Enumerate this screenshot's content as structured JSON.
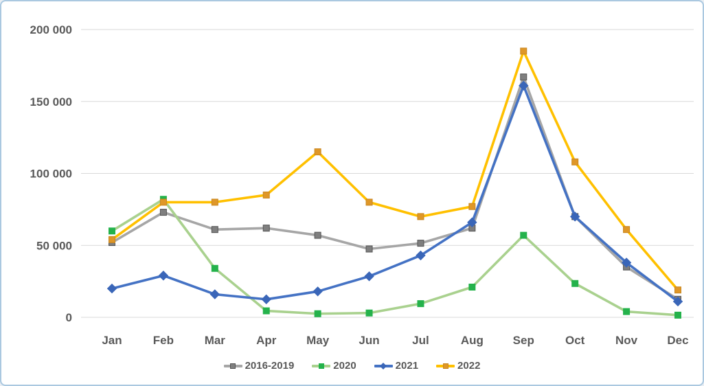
{
  "card": {
    "background": "#ffffff",
    "border_color": "#aac8e0"
  },
  "chart_data": {
    "type": "line",
    "title": "",
    "xlabel": "",
    "ylabel": "",
    "categories": [
      "Jan",
      "Feb",
      "Mar",
      "Apr",
      "May",
      "Jun",
      "Jul",
      "Aug",
      "Sep",
      "Oct",
      "Nov",
      "Dec"
    ],
    "series": [
      {
        "name": "2016-2019",
        "line_color": "#a6a6a6",
        "marker_color": "#7f7f7f",
        "marker_border": "#545454",
        "marker": "square",
        "values": [
          52000,
          73000,
          61000,
          62000,
          57000,
          47500,
          51500,
          62000,
          167000,
          70000,
          35000,
          12500
        ]
      },
      {
        "name": "2020",
        "line_color": "#a9d18e",
        "marker_color": "#24b24b",
        "marker_border": "#24b24b",
        "marker": "square",
        "values": [
          60000,
          82000,
          34000,
          4500,
          2500,
          3000,
          9500,
          21000,
          57000,
          23500,
          4000,
          1500
        ]
      },
      {
        "name": "2021",
        "line_color": "#4472c4",
        "marker_color": "#3a66b8",
        "marker_border": "#3a66b8",
        "marker": "diamond",
        "values": [
          20000,
          29000,
          16000,
          12500,
          18000,
          28500,
          43000,
          66000,
          161000,
          70000,
          38000,
          11000
        ]
      },
      {
        "name": "2022",
        "line_color": "#ffc000",
        "marker_color": "#df9728",
        "marker_border": "#c8861f",
        "marker": "square",
        "values": [
          54000,
          80000,
          80000,
          85000,
          115000,
          80000,
          70000,
          77000,
          185000,
          108000,
          61000,
          19000
        ]
      }
    ],
    "ylim": [
      0,
      200000
    ],
    "yticks": [
      {
        "value": 0,
        "label": "0"
      },
      {
        "value": 50000,
        "label": "50 000"
      },
      {
        "value": 100000,
        "label": "100 000"
      },
      {
        "value": 150000,
        "label": "150 000"
      },
      {
        "value": 200000,
        "label": "200 000"
      }
    ],
    "grid": true,
    "grid_color": "#d9d9d9",
    "text_color": "#595959",
    "legend_position": "bottom"
  }
}
